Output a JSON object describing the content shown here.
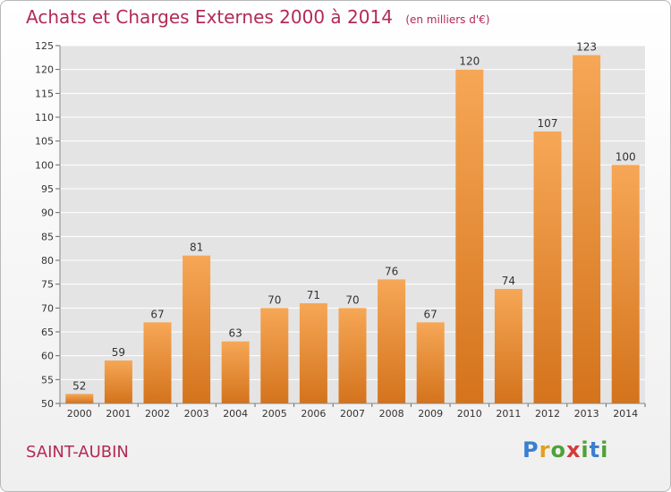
{
  "header": {
    "title": "Achats et Charges Externes 2000 à 2014",
    "unit": "(en milliers d'€)"
  },
  "footer": {
    "city": "SAINT-AUBIN",
    "logo_text": "Proxiti"
  },
  "colors": {
    "bar_light": "#f6a756",
    "bar_dark": "#d4731c",
    "title": "#b32a55",
    "grid": "#ffffff"
  },
  "chart_data": {
    "type": "bar",
    "title": "Achats et Charges Externes 2000 à 2014",
    "subtitle": "(en milliers d'€)",
    "xlabel": "",
    "ylabel": "",
    "categories": [
      "2000",
      "2001",
      "2002",
      "2003",
      "2004",
      "2005",
      "2006",
      "2007",
      "2008",
      "2009",
      "2010",
      "2011",
      "2012",
      "2013",
      "2014"
    ],
    "values": [
      52,
      59,
      67,
      81,
      63,
      70,
      71,
      70,
      76,
      67,
      120,
      74,
      107,
      123,
      100
    ],
    "ylim": [
      50,
      125
    ],
    "yticks": [
      50,
      55,
      60,
      65,
      70,
      75,
      80,
      85,
      90,
      95,
      100,
      105,
      110,
      115,
      120,
      125
    ],
    "grid": true,
    "legend": "none"
  }
}
